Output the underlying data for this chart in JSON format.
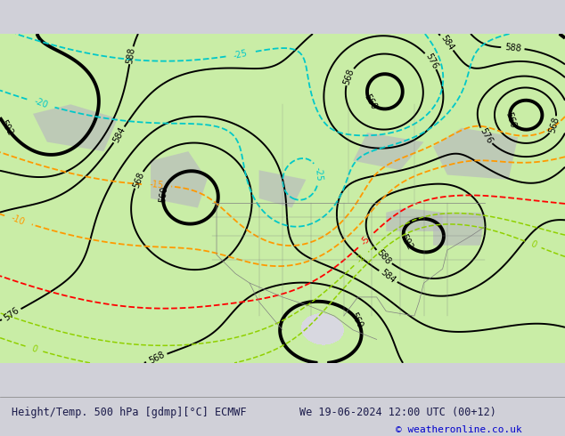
{
  "title_left": "Height/Temp. 500 hPa [gdmp][°C] ECMWF",
  "title_right": "We 19-06-2024 12:00 UTC (00+12)",
  "copyright": "© weatheronline.co.uk",
  "bg_color": "#d0d0d8",
  "map_bg_color": "#d8d8e0",
  "land_green_color": "#c8f0a0",
  "land_gray_color": "#b8b8c0",
  "contour_color": "#000000",
  "temp_neg_color": "#00c8c8",
  "temp_orange_color": "#ff9900",
  "temp_red_color": "#ff0000",
  "temp_green_color": "#90d000",
  "label_color": "#000000",
  "border_color": "#808080",
  "figsize": [
    6.34,
    4.9
  ],
  "dpi": 100
}
